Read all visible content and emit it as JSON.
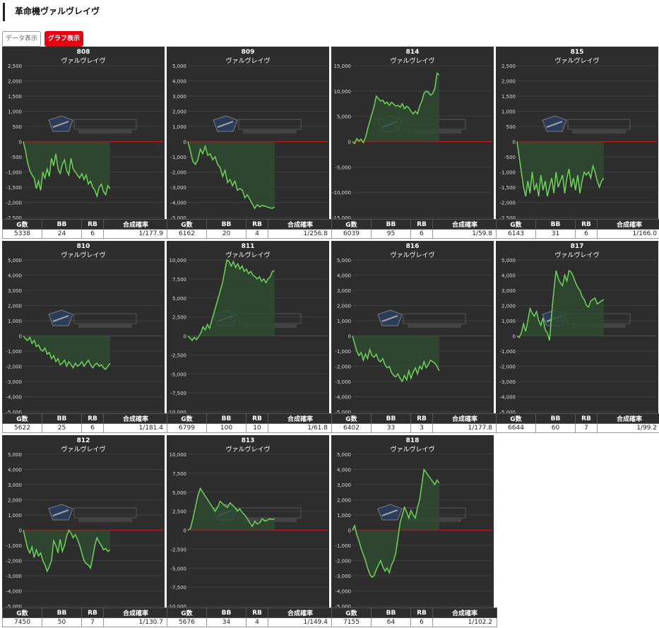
{
  "page": {
    "title": "革命機ヴァルヴレイヴ"
  },
  "tabs": [
    {
      "label": "データ表示",
      "active": false
    },
    {
      "label": "グラフ表示",
      "active": true
    }
  ],
  "columns": [
    "G数",
    "BB",
    "RB",
    "合成確率"
  ],
  "colors": {
    "line": "#6fd45a",
    "fill": "#2f4a30",
    "zero_line": "#c0202a",
    "panel_bg": "#2d2d2d",
    "grid": "#3f3f3f"
  },
  "chart_data": [
    {
      "type": "line",
      "title": "808",
      "subtitle": "ヴァルヴレイヴ",
      "ylim": [
        -2500,
        2500
      ],
      "yticks": [
        2500,
        2000,
        1500,
        1000,
        500,
        0,
        -500,
        -1000,
        -1500,
        -2000,
        -2500
      ],
      "x": [
        0,
        1,
        2,
        3,
        4,
        5,
        6,
        7,
        8,
        9,
        10,
        11,
        12,
        13,
        14,
        15,
        16,
        17,
        18,
        19,
        20,
        21,
        22,
        23,
        24,
        25,
        26,
        27,
        28,
        29,
        30,
        31,
        32,
        33,
        34,
        35,
        36,
        37,
        38,
        39,
        40
      ],
      "y": [
        0,
        -300,
        -700,
        -950,
        -1100,
        -1200,
        -1550,
        -1300,
        -1600,
        -1000,
        -1200,
        -900,
        -1150,
        -550,
        -800,
        -400,
        -900,
        -1050,
        -750,
        -600,
        -950,
        -1100,
        -550,
        -900,
        -1000,
        -1100,
        -1200,
        -1050,
        -1250,
        -1100,
        -1400,
        -1300,
        -1500,
        -1600,
        -1800,
        -1500,
        -1400,
        -1650,
        -1750,
        -1450,
        -1550
      ]
    },
    {
      "type": "line",
      "title": "809",
      "subtitle": "ヴァルヴレイヴ",
      "ylim": [
        -5000,
        5000
      ],
      "yticks": [
        5000,
        4000,
        3000,
        2000,
        1000,
        0,
        -1000,
        -2000,
        -3000,
        -4000,
        -5000
      ],
      "x": [
        0,
        1,
        2,
        3,
        4,
        5,
        6,
        7,
        8,
        9,
        10,
        11,
        12,
        13,
        14,
        15,
        16,
        17,
        18,
        19,
        20,
        21,
        22,
        23,
        24,
        25,
        26,
        27,
        28,
        29,
        30,
        31,
        32,
        33,
        34,
        35
      ],
      "y": [
        0,
        -600,
        -1300,
        -1500,
        -1200,
        -500,
        -800,
        -300,
        -900,
        -800,
        -1200,
        -1000,
        -1500,
        -1700,
        -2300,
        -1900,
        -2700,
        -2500,
        -2900,
        -2600,
        -3200,
        -3100,
        -3200,
        -3700,
        -3500,
        -3800,
        -4100,
        -4400,
        -4150,
        -4300,
        -4200,
        -4250,
        -4300,
        -4350,
        -4400,
        -4300
      ]
    },
    {
      "type": "line",
      "title": "814",
      "subtitle": "ヴァルヴレイヴ",
      "ylim": [
        -15000,
        15000
      ],
      "yticks": [
        15000,
        10000,
        5000,
        0,
        -5000,
        -10000,
        -15000
      ],
      "x": [
        0,
        1,
        2,
        3,
        4,
        5,
        6,
        7,
        8,
        9,
        10,
        11,
        12,
        13,
        14,
        15,
        16,
        17,
        18,
        19,
        20,
        21,
        22,
        23,
        24,
        25,
        26,
        27,
        28,
        29,
        30,
        31,
        32,
        33,
        34,
        35,
        36,
        37,
        38,
        39,
        40
      ],
      "y": [
        0,
        -400,
        600,
        100,
        500,
        -200,
        800,
        2500,
        4000,
        5500,
        7000,
        9000,
        8500,
        8000,
        8200,
        7500,
        7800,
        7200,
        7800,
        7400,
        7000,
        7200,
        6800,
        7500,
        6500,
        7000,
        6700,
        6000,
        5500,
        6000,
        5500,
        7000,
        8000,
        9500,
        10000,
        9800,
        9200,
        9500,
        10500,
        13500,
        13200
      ]
    },
    {
      "type": "line",
      "title": "815",
      "subtitle": "ヴァルヴレイヴ",
      "ylim": [
        -2500,
        2500
      ],
      "yticks": [
        2500,
        2000,
        1500,
        1000,
        500,
        0,
        -500,
        -1000,
        -1500,
        -2000,
        -2500
      ],
      "x": [
        0,
        1,
        2,
        3,
        4,
        5,
        6,
        7,
        8,
        9,
        10,
        11,
        12,
        13,
        14,
        15,
        16,
        17,
        18,
        19,
        20,
        21,
        22,
        23,
        24,
        25,
        26,
        27,
        28,
        29,
        30,
        31,
        32,
        33,
        34,
        35,
        36,
        37,
        38,
        39,
        40
      ],
      "y": [
        0,
        -500,
        -1000,
        -1500,
        -1800,
        -1300,
        -1700,
        -1000,
        -1600,
        -1400,
        -1800,
        -1100,
        -1600,
        -1300,
        -1800,
        -1500,
        -1200,
        -1700,
        -1000,
        -1500,
        -1300,
        -1100,
        -1700,
        -1200,
        -900,
        -1500,
        -1200,
        -1600,
        -1100,
        -1700,
        -1300,
        -1000,
        -1100,
        -1000,
        -1200,
        -800,
        -1000,
        -1300,
        -1500,
        -1300,
        -1200
      ]
    },
    {
      "type": "line",
      "title": "810",
      "subtitle": "ヴァルヴレイヴ",
      "ylim": [
        -5000,
        5000
      ],
      "yticks": [
        5000,
        4000,
        3000,
        2000,
        1000,
        0,
        -1000,
        -2000,
        -3000,
        -4000,
        -5000
      ],
      "x": [
        0,
        1,
        2,
        3,
        4,
        5,
        6,
        7,
        8,
        9,
        10,
        11,
        12,
        13,
        14,
        15,
        16,
        17,
        18,
        19,
        20,
        21,
        22,
        23,
        24,
        25,
        26,
        27,
        28,
        29,
        30,
        31,
        32,
        33,
        34,
        35,
        36,
        37,
        38,
        39,
        40
      ],
      "y": [
        0,
        -200,
        -300,
        -100,
        -500,
        -300,
        -700,
        -600,
        -900,
        -1000,
        -800,
        -1200,
        -1100,
        -1500,
        -1300,
        -1700,
        -1500,
        -1900,
        -1800,
        -1600,
        -2000,
        -1700,
        -1900,
        -2100,
        -1800,
        -2000,
        -1900,
        -1700,
        -2000,
        -1800,
        -1600,
        -1900,
        -2100,
        -1900,
        -1800,
        -2000,
        -1900,
        -2100,
        -2200,
        -2000,
        -1800
      ]
    },
    {
      "type": "line",
      "title": "811",
      "subtitle": "ヴァルヴレイヴ",
      "ylim": [
        -10000,
        10000
      ],
      "yticks": [
        10000,
        7500,
        5000,
        2500,
        0,
        -2500,
        -5000,
        -7500,
        -10000
      ],
      "x": [
        0,
        1,
        2,
        3,
        4,
        5,
        6,
        7,
        8,
        9,
        10,
        11,
        12,
        13,
        14,
        15,
        16,
        17,
        18,
        19,
        20,
        21,
        22,
        23,
        24,
        25,
        26,
        27,
        28,
        29,
        30,
        31,
        32,
        33,
        34,
        35,
        36,
        37,
        38,
        39,
        40
      ],
      "y": [
        0,
        -300,
        -600,
        -200,
        -500,
        -100,
        400,
        1200,
        800,
        1500,
        1000,
        2000,
        3000,
        4000,
        5000,
        6000,
        7000,
        8500,
        10000,
        9800,
        9200,
        9800,
        9000,
        9500,
        8800,
        9200,
        8500,
        8800,
        8200,
        8500,
        8000,
        7800,
        7500,
        7800,
        7200,
        7500,
        7000,
        7500,
        7800,
        8500,
        8600
      ]
    },
    {
      "type": "line",
      "title": "816",
      "subtitle": "ヴァルヴレイヴ",
      "ylim": [
        -5000,
        5000
      ],
      "yticks": [
        5000,
        4000,
        3000,
        2000,
        1000,
        0,
        -1000,
        -2000,
        -3000,
        -4000,
        -5000
      ],
      "x": [
        0,
        1,
        2,
        3,
        4,
        5,
        6,
        7,
        8,
        9,
        10,
        11,
        12,
        13,
        14,
        15,
        16,
        17,
        18,
        19,
        20,
        21,
        22,
        23,
        24,
        25,
        26,
        27,
        28,
        29,
        30,
        31,
        32,
        33,
        34,
        35,
        36,
        37,
        38,
        39,
        40
      ],
      "y": [
        0,
        -500,
        -1000,
        -1300,
        -1100,
        -1600,
        -1200,
        -1500,
        -900,
        -1300,
        -1400,
        -1200,
        -1600,
        -1700,
        -1500,
        -1900,
        -2100,
        -2000,
        -2400,
        -2600,
        -2700,
        -2500,
        -2800,
        -3000,
        -2600,
        -2900,
        -2300,
        -2800,
        -2400,
        -2100,
        -2500,
        -2000,
        -2200,
        -1700,
        -2100,
        -1900,
        -1600,
        -1700,
        -1800,
        -2000,
        -2300
      ]
    },
    {
      "type": "line",
      "title": "817",
      "subtitle": "ヴァルヴレイヴ",
      "ylim": [
        -5000,
        5000
      ],
      "yticks": [
        5000,
        4000,
        3000,
        2000,
        1000,
        0,
        -1000,
        -2000,
        -3000,
        -4000,
        -5000
      ],
      "x": [
        0,
        1,
        2,
        3,
        4,
        5,
        6,
        7,
        8,
        9,
        10,
        11,
        12,
        13,
        14,
        15,
        16,
        17,
        18,
        19,
        20,
        21,
        22,
        23,
        24,
        25,
        26,
        27,
        28,
        29,
        30,
        31,
        32,
        33,
        34,
        35,
        36,
        37,
        38,
        39,
        40
      ],
      "y": [
        0,
        -100,
        200,
        800,
        300,
        1000,
        1800,
        1500,
        1300,
        1600,
        1000,
        700,
        1200,
        400,
        200,
        -300,
        1500,
        3000,
        4300,
        3800,
        3500,
        3300,
        4000,
        3600,
        4300,
        4200,
        3900,
        3500,
        3200,
        3000,
        2600,
        2400,
        2000,
        1900,
        2300,
        2400,
        2500,
        2100,
        2200,
        2300,
        2400
      ]
    },
    {
      "type": "line",
      "title": "812",
      "subtitle": "ヴァルヴレイヴ",
      "ylim": [
        -5000,
        5000
      ],
      "yticks": [
        5000,
        4000,
        3000,
        2000,
        1000,
        0,
        -1000,
        -2000,
        -3000,
        -4000,
        -5000
      ],
      "x": [
        0,
        1,
        2,
        3,
        4,
        5,
        6,
        7,
        8,
        9,
        10,
        11,
        12,
        13,
        14,
        15,
        16,
        17,
        18,
        19,
        20,
        21,
        22,
        23,
        24,
        25,
        26,
        27,
        28,
        29,
        30,
        31,
        32,
        33,
        34,
        35,
        36,
        37,
        38,
        39,
        40
      ],
      "y": [
        0,
        -600,
        -1200,
        -1500,
        -1100,
        -1800,
        -1300,
        -1700,
        -1500,
        -2000,
        -2300,
        -2700,
        -2400,
        -2000,
        -700,
        -1000,
        -1500,
        -600,
        -1400,
        -1000,
        -400,
        0,
        -200,
        -500,
        -300,
        -600,
        -1000,
        -1500,
        -2000,
        -2200,
        -2300,
        -2500,
        -1800,
        -1000,
        -500,
        -800,
        -1000,
        -1300,
        -1200,
        -1400,
        -1300
      ]
    },
    {
      "type": "line",
      "title": "813",
      "subtitle": "ヴァルヴレイヴ",
      "ylim": [
        -10000,
        10000
      ],
      "yticks": [
        10000,
        7500,
        5000,
        2500,
        0,
        -2500,
        -5000,
        -7500,
        -10000
      ],
      "x": [
        0,
        1,
        2,
        3,
        4,
        5,
        6,
        7,
        8,
        9,
        10,
        11,
        12,
        13,
        14,
        15,
        16,
        17,
        18,
        19,
        20,
        21,
        22,
        23,
        24,
        25,
        26,
        27,
        28,
        29,
        30,
        31,
        32,
        33,
        34,
        35
      ],
      "y": [
        0,
        200,
        1500,
        3000,
        4500,
        5500,
        5000,
        4500,
        4000,
        3500,
        3000,
        2500,
        3000,
        3800,
        3500,
        3200,
        3000,
        3600,
        3300,
        3000,
        2500,
        2800,
        2300,
        2000,
        1500,
        1000,
        500,
        1200,
        800,
        1000,
        1500,
        1200,
        1300,
        1500,
        1400,
        1500
      ]
    },
    {
      "type": "line",
      "title": "818",
      "subtitle": "ヴァルヴレイヴ",
      "ylim": [
        -5000,
        5000
      ],
      "yticks": [
        5000,
        4000,
        3000,
        2000,
        1000,
        0,
        -1000,
        -2000,
        -3000,
        -4000,
        -5000
      ],
      "x": [
        0,
        1,
        2,
        3,
        4,
        5,
        6,
        7,
        8,
        9,
        10,
        11,
        12,
        13,
        14,
        15,
        16,
        17,
        18,
        19,
        20,
        21,
        22,
        23,
        24,
        25,
        26,
        27,
        28,
        29,
        30,
        31,
        32,
        33,
        34,
        35,
        36,
        37,
        38,
        39,
        40
      ],
      "y": [
        0,
        300,
        -300,
        -700,
        -1200,
        -1600,
        -2000,
        -2500,
        -2900,
        -3100,
        -3000,
        -2600,
        -2300,
        -2000,
        -2400,
        -2700,
        -2500,
        -2800,
        -2300,
        -2000,
        -1500,
        -500,
        500,
        1000,
        1500,
        1200,
        800,
        1300,
        1000,
        800,
        1500,
        2000,
        3000,
        4000,
        3800,
        3600,
        3400,
        3200,
        3000,
        3300,
        3100
      ]
    }
  ],
  "stats": [
    {
      "g": "5338",
      "bb": "24",
      "rb": "6",
      "rate": "1/177.9"
    },
    {
      "g": "6162",
      "bb": "20",
      "rb": "4",
      "rate": "1/256.8"
    },
    {
      "g": "6039",
      "bb": "95",
      "rb": "6",
      "rate": "1/59.8"
    },
    {
      "g": "6143",
      "bb": "31",
      "rb": "6",
      "rate": "1/166.0"
    },
    {
      "g": "5622",
      "bb": "25",
      "rb": "6",
      "rate": "1/181.4"
    },
    {
      "g": "6799",
      "bb": "100",
      "rb": "10",
      "rate": "1/61.8"
    },
    {
      "g": "6402",
      "bb": "33",
      "rb": "3",
      "rate": "1/177.8"
    },
    {
      "g": "6644",
      "bb": "60",
      "rb": "7",
      "rate": "1/99.2"
    },
    {
      "g": "7450",
      "bb": "50",
      "rb": "7",
      "rate": "1/130.7"
    },
    {
      "g": "5676",
      "bb": "34",
      "rb": "4",
      "rate": "1/149.4"
    },
    {
      "g": "7155",
      "bb": "64",
      "rb": "6",
      "rate": "1/102.2"
    }
  ]
}
